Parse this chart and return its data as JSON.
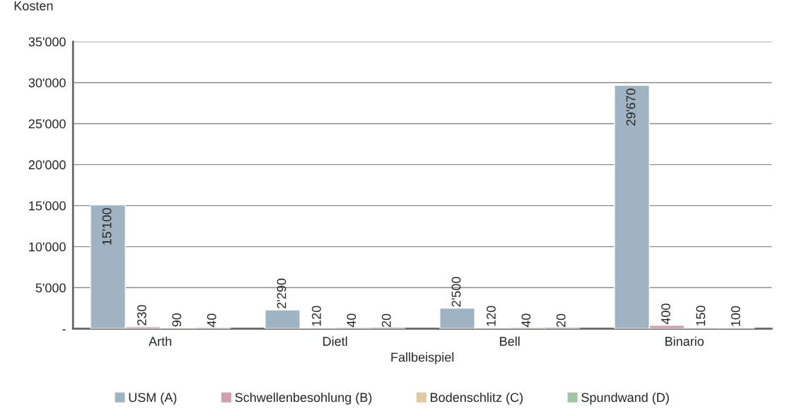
{
  "chart_data": {
    "type": "bar",
    "ylabel": "Kosten",
    "xlabel": "Fallbeispiel",
    "categories": [
      "Arth",
      "Dietl",
      "Bell",
      "Binario"
    ],
    "series": [
      {
        "name": "USM (A)",
        "color": "#9fb3c2",
        "values": [
          15100,
          2290,
          2500,
          29670
        ],
        "value_labels": [
          "15'100",
          "2'290",
          "2'500",
          "29'670"
        ]
      },
      {
        "name": "Schwellenbesohlung (B)",
        "color": "#d19fae",
        "values": [
          230,
          120,
          120,
          400
        ],
        "value_labels": [
          "230",
          "120",
          "120",
          "400"
        ]
      },
      {
        "name": "Bodenschlitz (C)",
        "color": "#dfcba0",
        "values": [
          90,
          40,
          40,
          150
        ],
        "value_labels": [
          "90",
          "40",
          "40",
          "150"
        ]
      },
      {
        "name": "Spundwand (D)",
        "color": "#a3c4a3",
        "values": [
          40,
          20,
          20,
          100
        ],
        "value_labels": [
          "40",
          "20",
          "20",
          "100"
        ]
      }
    ],
    "ylim": [
      0,
      35000
    ],
    "yticks": [
      {
        "value": 0,
        "label": "-"
      },
      {
        "value": 5000,
        "label": "5'000"
      },
      {
        "value": 10000,
        "label": "10'000"
      },
      {
        "value": 15000,
        "label": "15'000"
      },
      {
        "value": 20000,
        "label": "20'000"
      },
      {
        "value": 25000,
        "label": "25'000"
      },
      {
        "value": 30000,
        "label": "30'000"
      },
      {
        "value": 35000,
        "label": "35'000"
      }
    ],
    "grid": "y",
    "legend": "bottom"
  }
}
